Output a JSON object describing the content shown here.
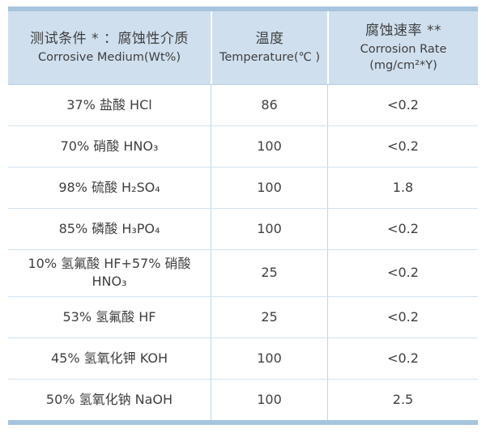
{
  "table": {
    "header": {
      "medium_zh": "测试条件 * ：腐蚀性介质",
      "medium_en": "Corrosive Medium(Wt%)",
      "temp_zh": "温度",
      "temp_en": "Temperature(℃ )",
      "rate_zh": "腐蚀速率 **",
      "rate_en": "Corrosion Rate",
      "rate_unit": "(mg/cm²*Y)"
    },
    "rows": [
      {
        "medium": "37% 盐酸 HCl",
        "temperature": "86",
        "rate": "<0.2"
      },
      {
        "medium": "70% 硝酸 HNO₃",
        "temperature": "100",
        "rate": "<0.2"
      },
      {
        "medium": "98% 硫酸 H₂SO₄",
        "temperature": "100",
        "rate": "1.8"
      },
      {
        "medium": "85% 磷酸 H₃PO₄",
        "temperature": "100",
        "rate": "<0.2"
      },
      {
        "medium": "10% 氢氟酸 HF+57% 硝酸 HNO₃",
        "temperature": "25",
        "rate": "<0.2"
      },
      {
        "medium": "53% 氢氟酸 HF",
        "temperature": "25",
        "rate": "<0.2"
      },
      {
        "medium": "45% 氢氧化钾 KOH",
        "temperature": "100",
        "rate": "<0.2"
      },
      {
        "medium": "50% 氢氧化钠 NaOH",
        "temperature": "100",
        "rate": "2.5"
      }
    ]
  },
  "chart_data": {
    "type": "table",
    "title": "测试条件：腐蚀性介质 / 腐蚀速率 (Corrosion test conditions and rates)",
    "columns": [
      "测试条件 * ：腐蚀性介质 Corrosive Medium(Wt%)",
      "温度 Temperature(℃)",
      "腐蚀速率 ** Corrosion Rate (mg/cm²*Y)"
    ],
    "rows": [
      [
        "37% 盐酸 HCl",
        86,
        "<0.2"
      ],
      [
        "70% 硝酸 HNO₃",
        100,
        "<0.2"
      ],
      [
        "98% 硫酸 H₂SO₄",
        100,
        1.8
      ],
      [
        "85% 磷酸 H₃PO₄",
        100,
        "<0.2"
      ],
      [
        "10% 氢氟酸 HF+57% 硝酸 HNO₃",
        25,
        "<0.2"
      ],
      [
        "53% 氢氟酸 HF",
        25,
        "<0.2"
      ],
      [
        "45% 氢氧化钾 KOH",
        100,
        "<0.2"
      ],
      [
        "50% 氢氧化钠 NaOH",
        100,
        2.5
      ]
    ]
  },
  "colors": {
    "accent_bar": "#a6c4de",
    "header_bg": "#cfdfee",
    "header_edge": "#b7d0e7",
    "row_line": "#cfe2f2",
    "column_line": "#bdd6ee",
    "text": "#3f3f3f"
  }
}
